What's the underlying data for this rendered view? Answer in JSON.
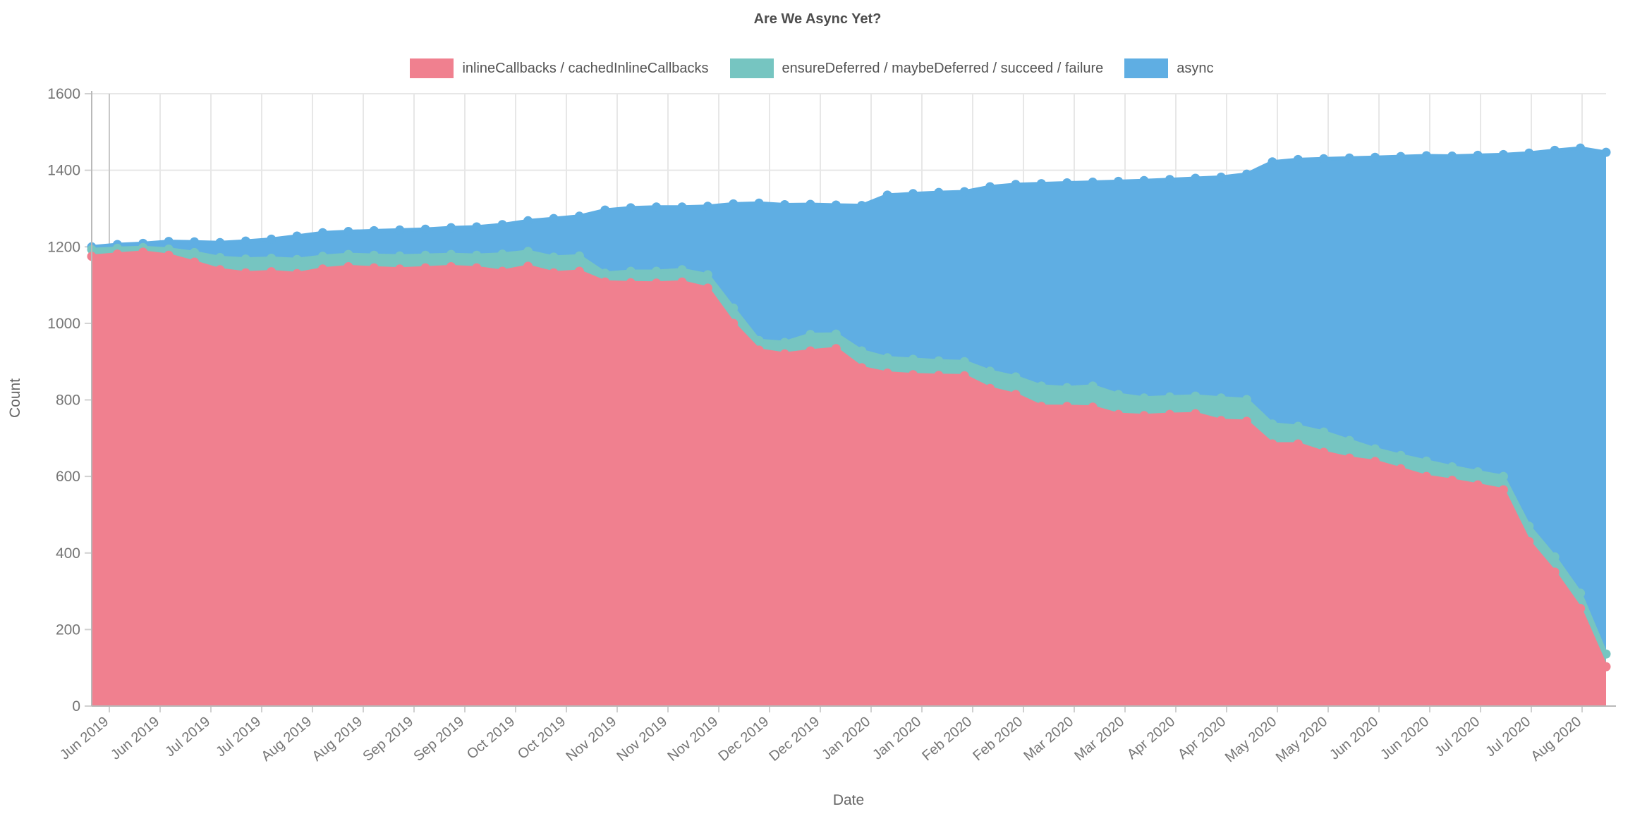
{
  "chart_data": {
    "type": "area",
    "stacked": true,
    "title": "Are We Async Yet?",
    "xlabel": "Date",
    "ylabel": "Count",
    "ylim": [
      0,
      1600
    ],
    "y_ticks": [
      0,
      200,
      400,
      600,
      800,
      1000,
      1200,
      1400,
      1600
    ],
    "grid": true,
    "legend_position": "top",
    "point_style": "circle",
    "x_tick_labels": [
      "Jun 2019",
      "Jun 2019",
      "Jul 2019",
      "Jul 2019",
      "Aug 2019",
      "Aug 2019",
      "Sep 2019",
      "Sep 2019",
      "Oct 2019",
      "Oct 2019",
      "Nov 2019",
      "Nov 2019",
      "Nov 2019",
      "Dec 2019",
      "Dec 2019",
      "Jan 2020",
      "Jan 2020",
      "Feb 2020",
      "Feb 2020",
      "Mar 2020",
      "Mar 2020",
      "Apr 2020",
      "Apr 2020",
      "May 2020",
      "May 2020",
      "Jun 2020",
      "Jun 2020",
      "Jul 2020",
      "Jul 2020",
      "Aug 2020"
    ],
    "series": [
      {
        "name": "inlineCallbacks / cachedInlineCallbacks",
        "color": "#f0808f",
        "values": [
          1175,
          1181,
          1186,
          1178,
          1160,
          1140,
          1132,
          1135,
          1130,
          1142,
          1148,
          1145,
          1142,
          1145,
          1148,
          1145,
          1136,
          1149,
          1132,
          1136,
          1108,
          1106,
          1105,
          1108,
          1092,
          1000,
          930,
          920,
          928,
          934,
          884,
          870,
          866,
          864,
          863,
          830,
          814,
          783,
          783,
          781,
          762,
          759,
          762,
          764,
          746,
          744,
          685,
          685,
          663,
          648,
          639,
          620,
          600,
          590,
          578,
          565,
          430,
          350,
          255,
          103
        ]
      },
      {
        "name": "ensureDeferred / maybeDeferred / succeed / failure",
        "color": "#76c5c1",
        "values": [
          18,
          15,
          12,
          16,
          25,
          32,
          36,
          35,
          37,
          33,
          32,
          33,
          34,
          33,
          32,
          33,
          45,
          39,
          41,
          40,
          23,
          30,
          31,
          32,
          35,
          40,
          25,
          30,
          43,
          38,
          44,
          40,
          40,
          38,
          37,
          45,
          46,
          53,
          49,
          55,
          52,
          46,
          46,
          46,
          59,
          57,
          52,
          46,
          53,
          46,
          33,
          35,
          40,
          35,
          34,
          35,
          40,
          40,
          40,
          33
        ]
      },
      {
        "name": "async",
        "color": "#5faee3",
        "values": [
          7,
          10,
          11,
          20,
          28,
          39,
          47,
          50,
          61,
          62,
          60,
          64,
          68,
          68,
          70,
          74,
          77,
          80,
          101,
          104,
          165,
          166,
          168,
          164,
          179,
          272,
          359,
          360,
          340,
          337,
          380,
          425,
          433,
          440,
          444,
          482,
          503,
          529,
          535,
          533,
          557,
          568,
          568,
          569,
          577,
          589,
          685,
          697,
          714,
          738,
          762,
          781,
          798,
          812,
          827,
          841,
          975,
          1062,
          1163,
          1311
        ]
      }
    ],
    "colors": {
      "grid": "#e7e7e7",
      "first_gridline": "#c9c9c9",
      "axis": "#b9b9b9",
      "tick_mark": "#d0d0d0",
      "tick_text": "#757575",
      "title_text": "#4d4d4d",
      "legend_text": "#545454",
      "axis_title_text": "#666666"
    }
  }
}
